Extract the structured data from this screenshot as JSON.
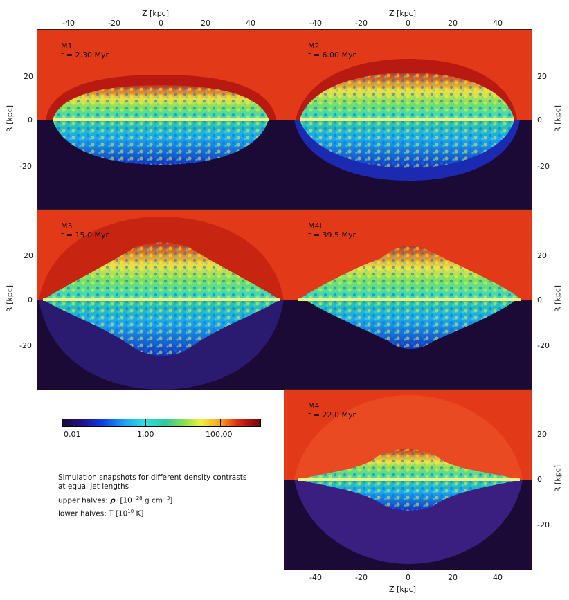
{
  "figure": {
    "top_axis_label": "Z  [kpc]",
    "bottom_axis_label": "Z  [kpc]",
    "r_axis_label": "R  [kpc]",
    "z_ticks": [
      "-40",
      "-20",
      "0",
      "20",
      "40"
    ],
    "r_ticks": [
      "20",
      "0",
      "-20"
    ]
  },
  "panels": [
    {
      "model": "M1",
      "time": "t = 2.30 Myr"
    },
    {
      "model": "M2",
      "time": "t = 6.00 Myr"
    },
    {
      "model": "M3",
      "time": "t = 15.0 Myr"
    },
    {
      "model": "M4L",
      "time": "t = 39.5 Myr"
    },
    {
      "model": "M4",
      "time": "t = 22.0 Myr"
    }
  ],
  "colorbar": {
    "ticks": [
      "0.01",
      "1.00",
      "100.00"
    ],
    "colors": [
      "#1b0a35",
      "#0d3de0",
      "#2fe0e0",
      "#f0f040",
      "#e23015",
      "#6a0808"
    ]
  },
  "caption": {
    "line1": "Simulation snapshots for different density contrasts",
    "line2": "at equal jet lengths",
    "upper_prefix": "upper halves: ",
    "upper_symbol": "ρ",
    "upper_unit": "[10",
    "upper_exp": "−28",
    "upper_unit2": " g cm",
    "upper_exp2": "−3",
    "upper_end": "]",
    "lower_prefix": "lower halves: T  [10",
    "lower_exp": "10",
    "lower_end": " K]"
  }
}
